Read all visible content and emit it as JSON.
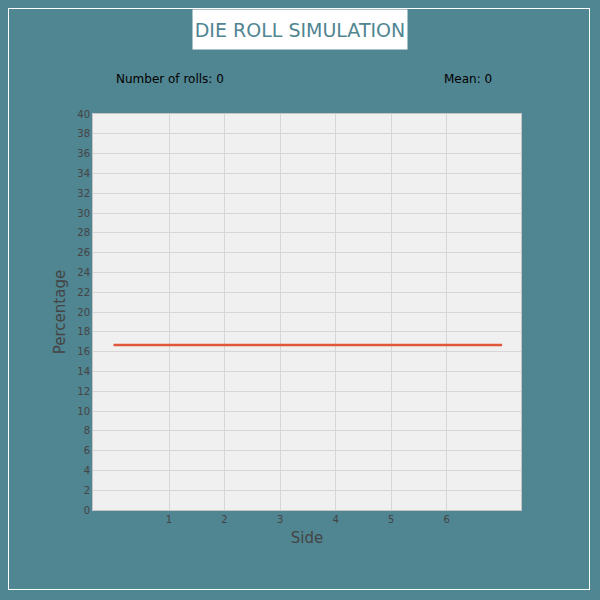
{
  "chart_data": {
    "type": "line",
    "title": "(DIE ROLL SIMULATION)",
    "annotations": [
      "Number of rolls: 0",
      "Mean: 0"
    ],
    "x_label": "Side",
    "y_label": "Percentage",
    "x": [
      0,
      7
    ],
    "values": [
      16.67,
      16.67
    ],
    "color": "#e0583a",
    "xlim": [
      -0.37,
      7.34
    ],
    "xticks": [
      1,
      2,
      3,
      4,
      5,
      6
    ],
    "ylim": [
      0,
      40
    ],
    "yticks": [
      0,
      2,
      4,
      6,
      8,
      10,
      12,
      14,
      16,
      18,
      20,
      22,
      24,
      26,
      28,
      30,
      32,
      34,
      36,
      38,
      40
    ],
    "grid": true
  }
}
